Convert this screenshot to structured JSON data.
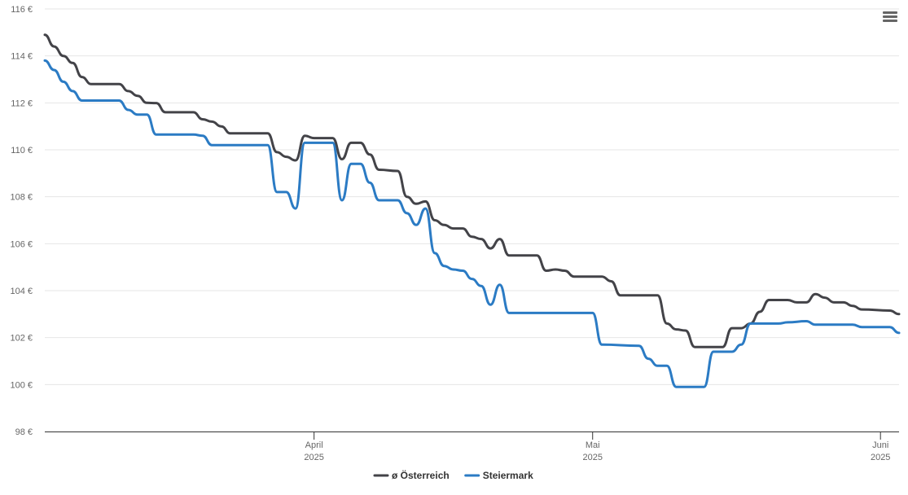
{
  "chart_data": {
    "type": "line",
    "ylim": [
      98,
      116
    ],
    "y_ticks": [
      "98 €",
      "100 €",
      "102 €",
      "104 €",
      "106 €",
      "108 €",
      "110 €",
      "112 €",
      "114 €",
      "116 €"
    ],
    "y_tick_values": [
      98,
      100,
      102,
      104,
      106,
      108,
      110,
      112,
      114,
      116
    ],
    "x_start": "2025-03-03",
    "x_end": "2025-06-03",
    "x_ticks": [
      {
        "date": "2025-04-01",
        "label_month": "April",
        "label_year": "2025"
      },
      {
        "date": "2025-05-01",
        "label_month": "Mai",
        "label_year": "2025"
      },
      {
        "date": "2025-06-01",
        "label_month": "Juni",
        "label_year": "2025"
      }
    ],
    "grid": true,
    "legend_position": "bottom-center",
    "series": [
      {
        "name": "ø Österreich",
        "color": "#434348",
        "points": [
          [
            "2025-03-03",
            114.9
          ],
          [
            "2025-03-04",
            114.4
          ],
          [
            "2025-03-05",
            114.0
          ],
          [
            "2025-03-06",
            113.7
          ],
          [
            "2025-03-07",
            113.1
          ],
          [
            "2025-03-08",
            112.8
          ],
          [
            "2025-03-11",
            112.8
          ],
          [
            "2025-03-12",
            112.5
          ],
          [
            "2025-03-13",
            112.3
          ],
          [
            "2025-03-14",
            112.0
          ],
          [
            "2025-03-15",
            111.99
          ],
          [
            "2025-03-16",
            111.6
          ],
          [
            "2025-03-19",
            111.6
          ],
          [
            "2025-03-20",
            111.3
          ],
          [
            "2025-03-21",
            111.2
          ],
          [
            "2025-03-22",
            111.0
          ],
          [
            "2025-03-23",
            110.7
          ],
          [
            "2025-03-27",
            110.7
          ],
          [
            "2025-03-28",
            109.9
          ],
          [
            "2025-03-29",
            109.7
          ],
          [
            "2025-03-30",
            109.55
          ],
          [
            "2025-03-31",
            110.6
          ],
          [
            "2025-04-01",
            110.5
          ],
          [
            "2025-04-03",
            110.5
          ],
          [
            "2025-04-04",
            109.6
          ],
          [
            "2025-04-05",
            110.3
          ],
          [
            "2025-04-06",
            110.3
          ],
          [
            "2025-04-07",
            109.8
          ],
          [
            "2025-04-08",
            109.15
          ],
          [
            "2025-04-10",
            109.1
          ],
          [
            "2025-04-11",
            108.0
          ],
          [
            "2025-04-12",
            107.7
          ],
          [
            "2025-04-13",
            107.8
          ],
          [
            "2025-04-14",
            107.0
          ],
          [
            "2025-04-15",
            106.8
          ],
          [
            "2025-04-16",
            106.65
          ],
          [
            "2025-04-17",
            106.65
          ],
          [
            "2025-04-18",
            106.3
          ],
          [
            "2025-04-19",
            106.2
          ],
          [
            "2025-04-20",
            105.8
          ],
          [
            "2025-04-21",
            106.2
          ],
          [
            "2025-04-22",
            105.5
          ],
          [
            "2025-04-25",
            105.5
          ],
          [
            "2025-04-26",
            104.85
          ],
          [
            "2025-04-27",
            104.9
          ],
          [
            "2025-04-28",
            104.85
          ],
          [
            "2025-04-29",
            104.6
          ],
          [
            "2025-05-02",
            104.6
          ],
          [
            "2025-05-03",
            104.4
          ],
          [
            "2025-05-04",
            103.8
          ],
          [
            "2025-05-05",
            103.8
          ],
          [
            "2025-05-08",
            103.8
          ],
          [
            "2025-05-09",
            102.6
          ],
          [
            "2025-05-10",
            102.35
          ],
          [
            "2025-05-11",
            102.3
          ],
          [
            "2025-05-12",
            101.6
          ],
          [
            "2025-05-15",
            101.6
          ],
          [
            "2025-05-16",
            102.4
          ],
          [
            "2025-05-17",
            102.4
          ],
          [
            "2025-05-18",
            102.6
          ],
          [
            "2025-05-19",
            103.1
          ],
          [
            "2025-05-20",
            103.6
          ],
          [
            "2025-05-22",
            103.6
          ],
          [
            "2025-05-23",
            103.5
          ],
          [
            "2025-05-24",
            103.5
          ],
          [
            "2025-05-25",
            103.85
          ],
          [
            "2025-05-26",
            103.7
          ],
          [
            "2025-05-27",
            103.5
          ],
          [
            "2025-05-28",
            103.5
          ],
          [
            "2025-05-29",
            103.35
          ],
          [
            "2025-05-30",
            103.2
          ],
          [
            "2025-06-02",
            103.15
          ],
          [
            "2025-06-03",
            103.0
          ]
        ]
      },
      {
        "name": "Steiermark",
        "color": "#2b7bc4",
        "points": [
          [
            "2025-03-03",
            113.8
          ],
          [
            "2025-03-04",
            113.4
          ],
          [
            "2025-03-05",
            112.9
          ],
          [
            "2025-03-06",
            112.5
          ],
          [
            "2025-03-07",
            112.1
          ],
          [
            "2025-03-10",
            112.1
          ],
          [
            "2025-03-11",
            112.1
          ],
          [
            "2025-03-12",
            111.7
          ],
          [
            "2025-03-13",
            111.5
          ],
          [
            "2025-03-14",
            111.5
          ],
          [
            "2025-03-15",
            110.65
          ],
          [
            "2025-03-19",
            110.65
          ],
          [
            "2025-03-20",
            110.6
          ],
          [
            "2025-03-21",
            110.2
          ],
          [
            "2025-03-26",
            110.2
          ],
          [
            "2025-03-27",
            110.2
          ],
          [
            "2025-03-28",
            108.2
          ],
          [
            "2025-03-29",
            108.2
          ],
          [
            "2025-03-30",
            107.5
          ],
          [
            "2025-03-31",
            110.3
          ],
          [
            "2025-04-03",
            110.3
          ],
          [
            "2025-04-04",
            107.85
          ],
          [
            "2025-04-05",
            109.4
          ],
          [
            "2025-04-06",
            109.4
          ],
          [
            "2025-04-07",
            108.6
          ],
          [
            "2025-04-08",
            107.85
          ],
          [
            "2025-04-10",
            107.85
          ],
          [
            "2025-04-11",
            107.3
          ],
          [
            "2025-04-12",
            106.8
          ],
          [
            "2025-04-13",
            107.5
          ],
          [
            "2025-04-14",
            105.6
          ],
          [
            "2025-04-15",
            105.05
          ],
          [
            "2025-04-16",
            104.9
          ],
          [
            "2025-04-17",
            104.85
          ],
          [
            "2025-04-18",
            104.5
          ],
          [
            "2025-04-19",
            104.2
          ],
          [
            "2025-04-20",
            103.4
          ],
          [
            "2025-04-21",
            104.25
          ],
          [
            "2025-04-22",
            103.05
          ],
          [
            "2025-05-01",
            103.05
          ],
          [
            "2025-05-02",
            101.7
          ],
          [
            "2025-05-06",
            101.65
          ],
          [
            "2025-05-07",
            101.1
          ],
          [
            "2025-05-08",
            100.8
          ],
          [
            "2025-05-09",
            100.8
          ],
          [
            "2025-05-10",
            99.9
          ],
          [
            "2025-05-13",
            99.9
          ],
          [
            "2025-05-14",
            101.4
          ],
          [
            "2025-05-16",
            101.4
          ],
          [
            "2025-05-17",
            101.7
          ],
          [
            "2025-05-18",
            102.6
          ],
          [
            "2025-05-20",
            102.6
          ],
          [
            "2025-05-21",
            102.6
          ],
          [
            "2025-05-22",
            102.65
          ],
          [
            "2025-05-24",
            102.7
          ],
          [
            "2025-05-25",
            102.55
          ],
          [
            "2025-05-26",
            102.55
          ],
          [
            "2025-05-29",
            102.55
          ],
          [
            "2025-05-30",
            102.45
          ],
          [
            "2025-06-02",
            102.45
          ],
          [
            "2025-06-03",
            102.2
          ]
        ]
      }
    ]
  }
}
